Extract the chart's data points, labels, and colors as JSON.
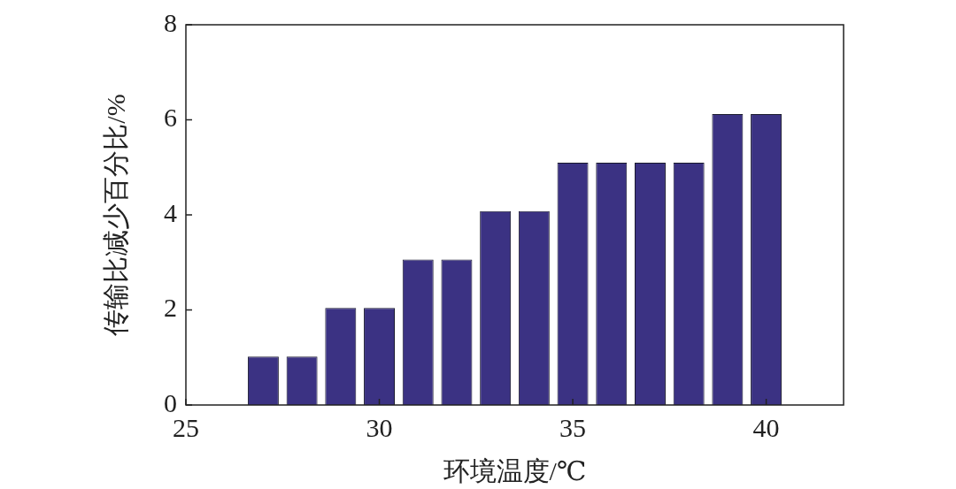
{
  "chart_data": {
    "type": "bar",
    "xlabel": "环境温度/℃",
    "ylabel": "传输比减少百分比/%",
    "x": [
      27,
      28,
      29,
      30,
      31,
      32,
      33,
      34,
      35,
      36,
      37,
      38,
      39,
      40
    ],
    "values": [
      1.02,
      1.02,
      2.04,
      2.04,
      3.06,
      3.06,
      4.08,
      4.08,
      5.1,
      5.1,
      5.1,
      5.1,
      6.12,
      6.12
    ],
    "color": "#3b3283",
    "xlim": [
      25,
      42
    ],
    "xticks": [
      25,
      30,
      35,
      40
    ],
    "ylim": [
      0,
      8
    ],
    "yticks": [
      0,
      2,
      4,
      6,
      8
    ],
    "grid": false,
    "legend": false
  }
}
